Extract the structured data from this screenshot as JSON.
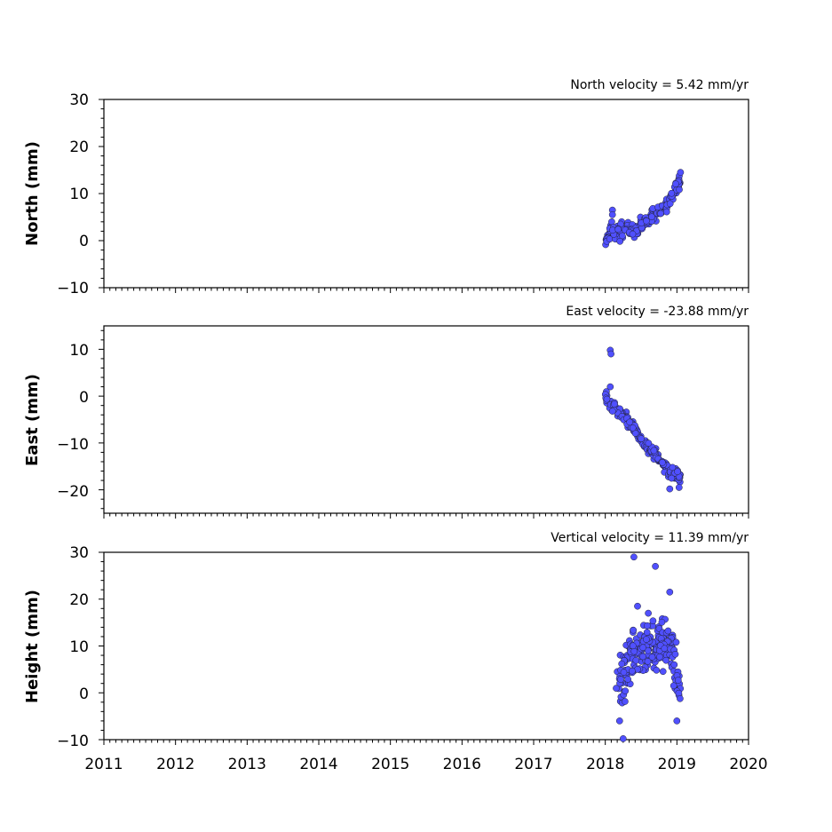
{
  "chart_data": [
    {
      "type": "scatter",
      "title": "North velocity = 5.42 mm/yr",
      "ylabel": "North (mm)",
      "xlim": [
        2011,
        2020
      ],
      "ylim": [
        -10,
        30
      ],
      "yticks": [
        "30",
        "20",
        "10",
        "0",
        "−10"
      ],
      "point_color": "#5050ff",
      "segments": [
        {
          "x0": 2018.0,
          "x1": 2018.05,
          "y0": -1.0,
          "y1": 1.5,
          "n": 12,
          "jitter": 1.0
        },
        {
          "x0": 2018.05,
          "x1": 2018.1,
          "y0": 1.5,
          "y1": 3.0,
          "n": 10,
          "jitter": 2.0
        },
        {
          "x0": 2018.1,
          "x1": 2018.5,
          "y0": 1.5,
          "y1": 3.0,
          "n": 55,
          "jitter": 1.8
        },
        {
          "x0": 2018.5,
          "x1": 2018.85,
          "y0": 3.0,
          "y1": 7.5,
          "n": 55,
          "jitter": 1.5
        },
        {
          "x0": 2018.85,
          "x1": 2019.05,
          "y0": 7.5,
          "y1": 13.0,
          "n": 35,
          "jitter": 1.5
        }
      ],
      "points": [
        [
          2018.1,
          6.5
        ],
        [
          2018.1,
          5.5
        ],
        [
          2019.05,
          14.5
        ]
      ]
    },
    {
      "type": "scatter",
      "title": "East velocity = -23.88 mm/yr",
      "ylabel": "East (mm)",
      "xlim": [
        2011,
        2020
      ],
      "ylim": [
        -25,
        15
      ],
      "yticks": [
        "10",
        "0",
        "−10",
        "−20"
      ],
      "point_color": "#5050ff",
      "segments": [
        {
          "x0": 2018.0,
          "x1": 2018.1,
          "y0": 0.0,
          "y1": -2.0,
          "n": 12,
          "jitter": 1.2
        },
        {
          "x0": 2018.1,
          "x1": 2018.3,
          "y0": -2.0,
          "y1": -5.0,
          "n": 35,
          "jitter": 1.5
        },
        {
          "x0": 2018.3,
          "x1": 2018.6,
          "y0": -5.0,
          "y1": -11.0,
          "n": 55,
          "jitter": 1.2
        },
        {
          "x0": 2018.6,
          "x1": 2018.9,
          "y0": -11.0,
          "y1": -16.0,
          "n": 55,
          "jitter": 1.2
        },
        {
          "x0": 2018.9,
          "x1": 2019.05,
          "y0": -16.0,
          "y1": -17.0,
          "n": 30,
          "jitter": 1.8
        }
      ],
      "points": [
        [
          2018.07,
          9.8
        ],
        [
          2018.08,
          9.0
        ],
        [
          2018.07,
          2.0
        ],
        [
          2018.9,
          -19.8
        ],
        [
          2019.03,
          -19.5
        ]
      ]
    },
    {
      "type": "scatter",
      "title": "Vertical velocity = 11.39 mm/yr",
      "ylabel": "Height (mm)",
      "xlim": [
        2011,
        2020
      ],
      "ylim": [
        -10,
        30
      ],
      "yticks": [
        "30",
        "20",
        "10",
        "0",
        "−10"
      ],
      "xticks": [
        "2011",
        "2012",
        "2013",
        "2014",
        "2015",
        "2016",
        "2017",
        "2018",
        "2019",
        "2020"
      ],
      "point_color": "#5050ff",
      "segments": [
        {
          "x0": 2018.15,
          "x1": 2018.35,
          "y0": 2.0,
          "y1": 6.0,
          "n": 40,
          "jitter": 6.0
        },
        {
          "x0": 2018.35,
          "x1": 2018.75,
          "y0": 8.0,
          "y1": 10.0,
          "n": 120,
          "jitter": 5.0
        },
        {
          "x0": 2018.75,
          "x1": 2018.95,
          "y0": 10.0,
          "y1": 9.0,
          "n": 55,
          "jitter": 5.0
        },
        {
          "x0": 2018.95,
          "x1": 2019.05,
          "y0": 6.0,
          "y1": 1.0,
          "n": 25,
          "jitter": 5.5
        }
      ],
      "points": [
        [
          2018.4,
          29.0
        ],
        [
          2018.7,
          27.0
        ],
        [
          2018.9,
          21.5
        ],
        [
          2018.25,
          -9.8
        ],
        [
          2018.2,
          -6.0
        ],
        [
          2019.0,
          -6.0
        ],
        [
          2018.45,
          18.5
        ],
        [
          2018.6,
          17.0
        ]
      ]
    }
  ]
}
